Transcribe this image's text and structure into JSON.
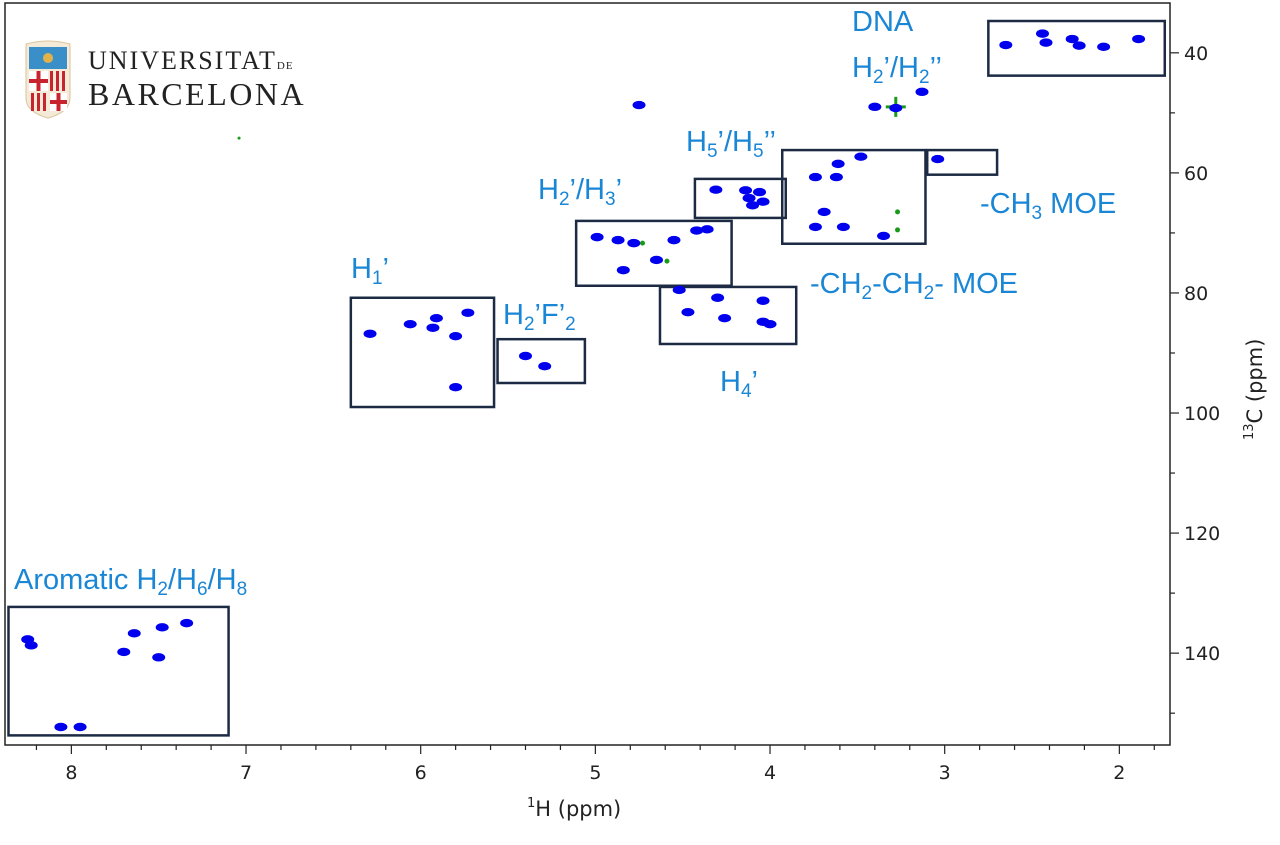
{
  "logo": {
    "line1": "UNIVERSITAT",
    "line1_suffix": "DE",
    "line2": "BARCELONA",
    "colors": {
      "blue": "#3a8fc9",
      "red": "#c8242f",
      "gold": "#e2b24a"
    }
  },
  "chart_data": {
    "type": "heatmap",
    "subtype": "2D HSQC NMR contour spectrum",
    "xlabel": {
      "sup": "1",
      "text": "H (ppm)"
    },
    "ylabel": {
      "sup": "13",
      "text": "C (ppm)"
    },
    "xlim": [
      8.38,
      1.71
    ],
    "ylim": [
      31.7,
      155.3
    ],
    "x_reversed": true,
    "y_reversed": true,
    "x_ticks": [
      8,
      7,
      6,
      5,
      4,
      3,
      2
    ],
    "y_ticks": [
      40,
      60,
      80,
      100,
      120,
      140
    ],
    "grid": false,
    "colors": {
      "positive": "#0000ee",
      "negative": "#1a9a1a",
      "box": "#1c2a44",
      "label": "#1a86d6"
    },
    "peaks": [
      {
        "H": 2.65,
        "C": 38.7
      },
      {
        "H": 2.44,
        "C": 36.8
      },
      {
        "H": 2.42,
        "C": 38.3
      },
      {
        "H": 2.27,
        "C": 37.7
      },
      {
        "H": 2.23,
        "C": 38.8
      },
      {
        "H": 2.09,
        "C": 39.0
      },
      {
        "H": 1.89,
        "C": 37.7
      },
      {
        "H": 3.28,
        "C": 49.2
      },
      {
        "H": 3.13,
        "C": 46.5
      },
      {
        "H": 3.4,
        "C": 49.0
      },
      {
        "H": 4.75,
        "C": 48.7
      },
      {
        "H": 3.04,
        "C": 57.7
      },
      {
        "H": 3.48,
        "C": 57.3
      },
      {
        "H": 3.61,
        "C": 58.5
      },
      {
        "H": 3.74,
        "C": 60.7
      },
      {
        "H": 3.62,
        "C": 60.7
      },
      {
        "H": 3.69,
        "C": 66.5
      },
      {
        "H": 3.74,
        "C": 69.0
      },
      {
        "H": 3.58,
        "C": 69.0
      },
      {
        "H": 3.35,
        "C": 70.5
      },
      {
        "H": 4.31,
        "C": 62.8
      },
      {
        "H": 4.14,
        "C": 62.9
      },
      {
        "H": 4.06,
        "C": 63.2
      },
      {
        "H": 4.12,
        "C": 64.2
      },
      {
        "H": 4.04,
        "C": 64.8
      },
      {
        "H": 4.1,
        "C": 65.4
      },
      {
        "H": 4.99,
        "C": 70.7
      },
      {
        "H": 4.87,
        "C": 71.2
      },
      {
        "H": 4.78,
        "C": 71.7
      },
      {
        "H": 4.55,
        "C": 71.2
      },
      {
        "H": 4.42,
        "C": 69.6
      },
      {
        "H": 4.36,
        "C": 69.4
      },
      {
        "H": 4.84,
        "C": 76.2
      },
      {
        "H": 4.65,
        "C": 74.5
      },
      {
        "H": 4.52,
        "C": 79.5
      },
      {
        "H": 4.3,
        "C": 80.8
      },
      {
        "H": 4.04,
        "C": 81.3
      },
      {
        "H": 4.47,
        "C": 83.2
      },
      {
        "H": 4.26,
        "C": 84.2
      },
      {
        "H": 4.04,
        "C": 84.8
      },
      {
        "H": 4.0,
        "C": 85.2
      },
      {
        "H": 6.29,
        "C": 86.8
      },
      {
        "H": 6.06,
        "C": 85.2
      },
      {
        "H": 5.91,
        "C": 84.2
      },
      {
        "H": 5.93,
        "C": 85.8
      },
      {
        "H": 5.73,
        "C": 83.3
      },
      {
        "H": 5.8,
        "C": 87.2
      },
      {
        "H": 5.8,
        "C": 95.7
      },
      {
        "H": 5.4,
        "C": 90.5
      },
      {
        "H": 5.29,
        "C": 92.2
      },
      {
        "H": 8.25,
        "C": 137.7
      },
      {
        "H": 8.23,
        "C": 138.7
      },
      {
        "H": 7.64,
        "C": 136.7
      },
      {
        "H": 7.7,
        "C": 139.8
      },
      {
        "H": 7.48,
        "C": 135.7
      },
      {
        "H": 7.5,
        "C": 140.7
      },
      {
        "H": 7.34,
        "C": 135.0
      },
      {
        "H": 8.06,
        "C": 152.3
      },
      {
        "H": 7.95,
        "C": 152.3
      }
    ],
    "negative_peaks": [
      {
        "H": 3.28,
        "C": 49.0
      },
      {
        "H": 4.73,
        "C": 71.7
      },
      {
        "H": 4.59,
        "C": 74.7
      },
      {
        "H": 3.27,
        "C": 66.5
      },
      {
        "H": 3.27,
        "C": 69.5
      },
      {
        "H": 7.04,
        "C": 54.2
      }
    ],
    "regions": [
      {
        "name": "dna-h2-region",
        "H": [
          2.75,
          1.74
        ],
        "C": [
          34.7,
          43.8
        ]
      },
      {
        "name": "ch3-moe-region",
        "H": [
          3.1,
          2.7
        ],
        "C": [
          56.2,
          60.3
        ]
      },
      {
        "name": "ch2ch2-moe-region",
        "H": [
          3.93,
          3.11
        ],
        "C": [
          56.2,
          71.8
        ]
      },
      {
        "name": "h5-region",
        "H": [
          4.43,
          3.91
        ],
        "C": [
          61.0,
          67.5
        ]
      },
      {
        "name": "h2-h3-region",
        "H": [
          5.11,
          4.22
        ],
        "C": [
          68.0,
          78.8
        ]
      },
      {
        "name": "h4-region",
        "H": [
          4.63,
          3.85
        ],
        "C": [
          79.0,
          88.5
        ]
      },
      {
        "name": "h1-region",
        "H": [
          6.4,
          5.58
        ],
        "C": [
          80.8,
          99.0
        ]
      },
      {
        "name": "h2f-region",
        "H": [
          5.56,
          5.06
        ],
        "C": [
          87.7,
          95.0
        ]
      },
      {
        "name": "aromatic-region",
        "H": [
          8.36,
          7.1
        ],
        "C": [
          132.3,
          153.7
        ]
      }
    ],
    "annotations": [
      {
        "id": "dna",
        "segments": [
          {
            "t": "DNA"
          }
        ]
      },
      {
        "id": "dna-h2",
        "segments": [
          {
            "t": "H"
          },
          {
            "t": "2",
            "sub": true
          },
          {
            "t": "’/H"
          },
          {
            "t": "2",
            "sub": true
          },
          {
            "t": "’’"
          }
        ]
      },
      {
        "id": "h5",
        "segments": [
          {
            "t": "H"
          },
          {
            "t": "5",
            "sub": true
          },
          {
            "t": "’/H"
          },
          {
            "t": "5",
            "sub": true
          },
          {
            "t": "’’"
          }
        ]
      },
      {
        "id": "h2h3",
        "segments": [
          {
            "t": "H"
          },
          {
            "t": "2",
            "sub": true
          },
          {
            "t": "’/H"
          },
          {
            "t": "3",
            "sub": true
          },
          {
            "t": "’"
          }
        ]
      },
      {
        "id": "ch3",
        "segments": [
          {
            "t": "-CH"
          },
          {
            "t": "3",
            "sub": true
          },
          {
            "t": " MOE"
          }
        ]
      },
      {
        "id": "ch2ch2",
        "segments": [
          {
            "t": "-CH"
          },
          {
            "t": "2",
            "sub": true
          },
          {
            "t": "-CH"
          },
          {
            "t": "2",
            "sub": true
          },
          {
            "t": "- MOE"
          }
        ]
      },
      {
        "id": "h1",
        "segments": [
          {
            "t": "H"
          },
          {
            "t": "1",
            "sub": true
          },
          {
            "t": "’"
          }
        ]
      },
      {
        "id": "h2f",
        "segments": [
          {
            "t": "H"
          },
          {
            "t": "2",
            "sub": true
          },
          {
            "t": "’F’"
          },
          {
            "t": "2",
            "sub": true
          }
        ]
      },
      {
        "id": "h4",
        "segments": [
          {
            "t": "H"
          },
          {
            "t": "4",
            "sub": true
          },
          {
            "t": "’"
          }
        ]
      },
      {
        "id": "aromatic",
        "segments": [
          {
            "t": "Aromatic H"
          },
          {
            "t": "2",
            "sub": true
          },
          {
            "t": "/H"
          },
          {
            "t": "6",
            "sub": true
          },
          {
            "t": "/H"
          },
          {
            "t": "8",
            "sub": true
          }
        ]
      }
    ]
  }
}
